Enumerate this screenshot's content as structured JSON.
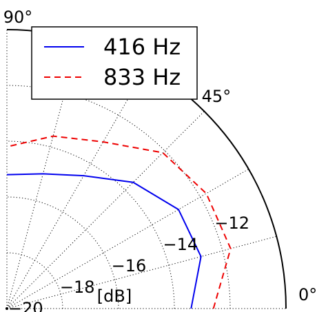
{
  "chart_data": {
    "type": "polar-line",
    "unit_label": "[dB]",
    "radial_range": [
      -20,
      -10
    ],
    "radial_ticks": [
      {
        "value": -20,
        "label": "−20"
      },
      {
        "value": -18,
        "label": "−18"
      },
      {
        "value": -16,
        "label": "−16"
      },
      {
        "value": -14,
        "label": "−14"
      },
      {
        "value": -12,
        "label": "−12"
      }
    ],
    "angle_range_deg": [
      0,
      90
    ],
    "angle_ticks": [
      {
        "value": 0,
        "label": "0°"
      },
      {
        "value": 45,
        "label": "45°"
      },
      {
        "value": 90,
        "label": "90°"
      }
    ],
    "grid": true,
    "legend_position": "top-left",
    "series": [
      {
        "name": "416 Hz",
        "color": "#0000ee",
        "dash": "solid",
        "angles_deg": [
          0,
          15,
          30,
          45,
          60,
          75,
          90
        ],
        "values": [
          -13.4,
          -12.8,
          -12.9,
          -13.6,
          -14.5,
          -15.0,
          -15.2
        ]
      },
      {
        "name": "833 Hz",
        "color": "#ee0000",
        "dash": "dashed",
        "angles_deg": [
          0,
          15,
          30,
          45,
          60,
          75,
          90
        ],
        "values": [
          -12.6,
          -11.7,
          -11.75,
          -12.1,
          -13.1,
          -13.6,
          -14.2
        ]
      }
    ]
  }
}
